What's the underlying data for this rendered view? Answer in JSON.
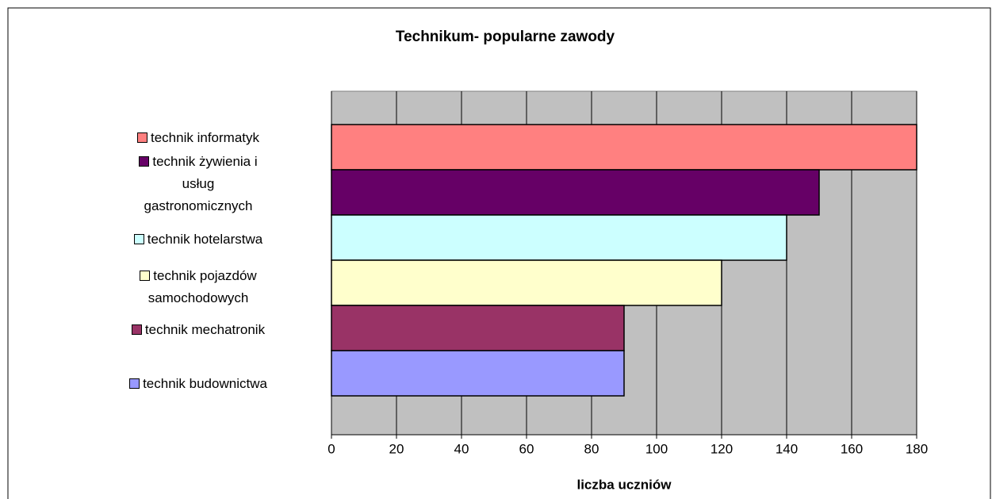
{
  "chart_data": {
    "type": "bar",
    "orientation": "horizontal",
    "title": "Technikum- popularne zawody",
    "x_label": "liczba uczniów",
    "series": [
      {
        "name": "technik informatyk",
        "color": "#ff8080",
        "values": [
          180
        ]
      },
      {
        "name": "technik żywienia i usług gastronomicznych",
        "color": "#660066",
        "values": [
          150
        ]
      },
      {
        "name": "technik hotelarstwa",
        "color": "#ccffff",
        "values": [
          140
        ]
      },
      {
        "name": "technik pojazdów samochodowych",
        "color": "#ffffcc",
        "values": [
          120
        ]
      },
      {
        "name": "technik mechatronik",
        "color": "#993366",
        "values": [
          90
        ]
      },
      {
        "name": "technik budownictwa",
        "color": "#9999ff",
        "values": [
          90
        ]
      }
    ],
    "xlim": [
      0,
      180
    ],
    "xticks": [
      0,
      20,
      40,
      60,
      80,
      100,
      120,
      140,
      160,
      180
    ],
    "grid": true,
    "plot_background": "#c0c0c0",
    "legend": "left"
  }
}
